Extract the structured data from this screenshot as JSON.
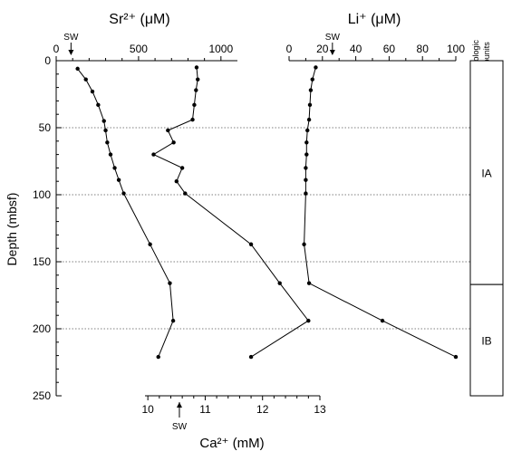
{
  "chart_data": {
    "type": "line",
    "depth_axis": {
      "label": "Depth (mbsf)",
      "range": [
        0,
        250
      ],
      "ticks": [
        0,
        50,
        100,
        150,
        200,
        250
      ],
      "reference_lines": [
        50,
        100,
        150,
        200
      ]
    },
    "sr_panel": {
      "axis_label": "Sr²⁺ (μM)",
      "axis_ticks": [
        0,
        500,
        1000
      ],
      "range": [
        0,
        1100
      ],
      "seawater_marker": {
        "label": "SW",
        "value": 90
      },
      "series": {
        "name": "Sr",
        "points": [
          {
            "depth": 6,
            "value": 130
          },
          {
            "depth": 14,
            "value": 180
          },
          {
            "depth": 23,
            "value": 220
          },
          {
            "depth": 33,
            "value": 255
          },
          {
            "depth": 45,
            "value": 290
          },
          {
            "depth": 52,
            "value": 300
          },
          {
            "depth": 61,
            "value": 310
          },
          {
            "depth": 70,
            "value": 330
          },
          {
            "depth": 80,
            "value": 355
          },
          {
            "depth": 89,
            "value": 380
          },
          {
            "depth": 99,
            "value": 410
          },
          {
            "depth": 137,
            "value": 570
          },
          {
            "depth": 166,
            "value": 690
          },
          {
            "depth": 194,
            "value": 710
          },
          {
            "depth": 221,
            "value": 620
          }
        ]
      }
    },
    "ca_panel": {
      "axis_label": "Ca²⁺ (mM)",
      "axis_ticks": [
        10,
        11,
        12,
        13
      ],
      "range": [
        9.95,
        13
      ],
      "seawater_marker": {
        "label": "SW",
        "value": 10.55
      },
      "series": {
        "name": "Ca",
        "points": [
          {
            "depth": 5,
            "value": 10.85
          },
          {
            "depth": 14,
            "value": 10.87
          },
          {
            "depth": 22,
            "value": 10.84
          },
          {
            "depth": 33,
            "value": 10.81
          },
          {
            "depth": 44,
            "value": 10.78
          },
          {
            "depth": 52,
            "value": 10.35
          },
          {
            "depth": 61,
            "value": 10.45
          },
          {
            "depth": 70,
            "value": 10.1
          },
          {
            "depth": 80,
            "value": 10.6
          },
          {
            "depth": 90,
            "value": 10.5
          },
          {
            "depth": 99,
            "value": 10.65
          },
          {
            "depth": 137,
            "value": 11.8
          },
          {
            "depth": 166,
            "value": 12.3
          },
          {
            "depth": 194,
            "value": 12.8
          },
          {
            "depth": 221,
            "value": 11.8
          }
        ]
      }
    },
    "li_panel": {
      "axis_label": "Li⁺ (μM)",
      "axis_ticks": [
        0,
        20,
        40,
        60,
        80,
        100
      ],
      "range": [
        0,
        100
      ],
      "seawater_marker": {
        "label": "SW",
        "value": 26
      },
      "series": {
        "name": "Li",
        "points": [
          {
            "depth": 5,
            "value": 16
          },
          {
            "depth": 14,
            "value": 14
          },
          {
            "depth": 22,
            "value": 13
          },
          {
            "depth": 33,
            "value": 12.5
          },
          {
            "depth": 44,
            "value": 12
          },
          {
            "depth": 52,
            "value": 11
          },
          {
            "depth": 61,
            "value": 10.5
          },
          {
            "depth": 70,
            "value": 10.5
          },
          {
            "depth": 80,
            "value": 10
          },
          {
            "depth": 89,
            "value": 10
          },
          {
            "depth": 99,
            "value": 10
          },
          {
            "depth": 137,
            "value": 9
          },
          {
            "depth": 166,
            "value": 12
          },
          {
            "depth": 194,
            "value": 56
          },
          {
            "depth": 221,
            "value": 100
          }
        ]
      }
    },
    "lithologic_units": {
      "label": "Lithologic subunits",
      "label_lines": [
        "Lithologic",
        "subunits"
      ],
      "units": [
        {
          "name": "IA",
          "top": 0,
          "bottom": 167
        },
        {
          "name": "IB",
          "top": 167,
          "bottom": 250
        }
      ]
    }
  }
}
